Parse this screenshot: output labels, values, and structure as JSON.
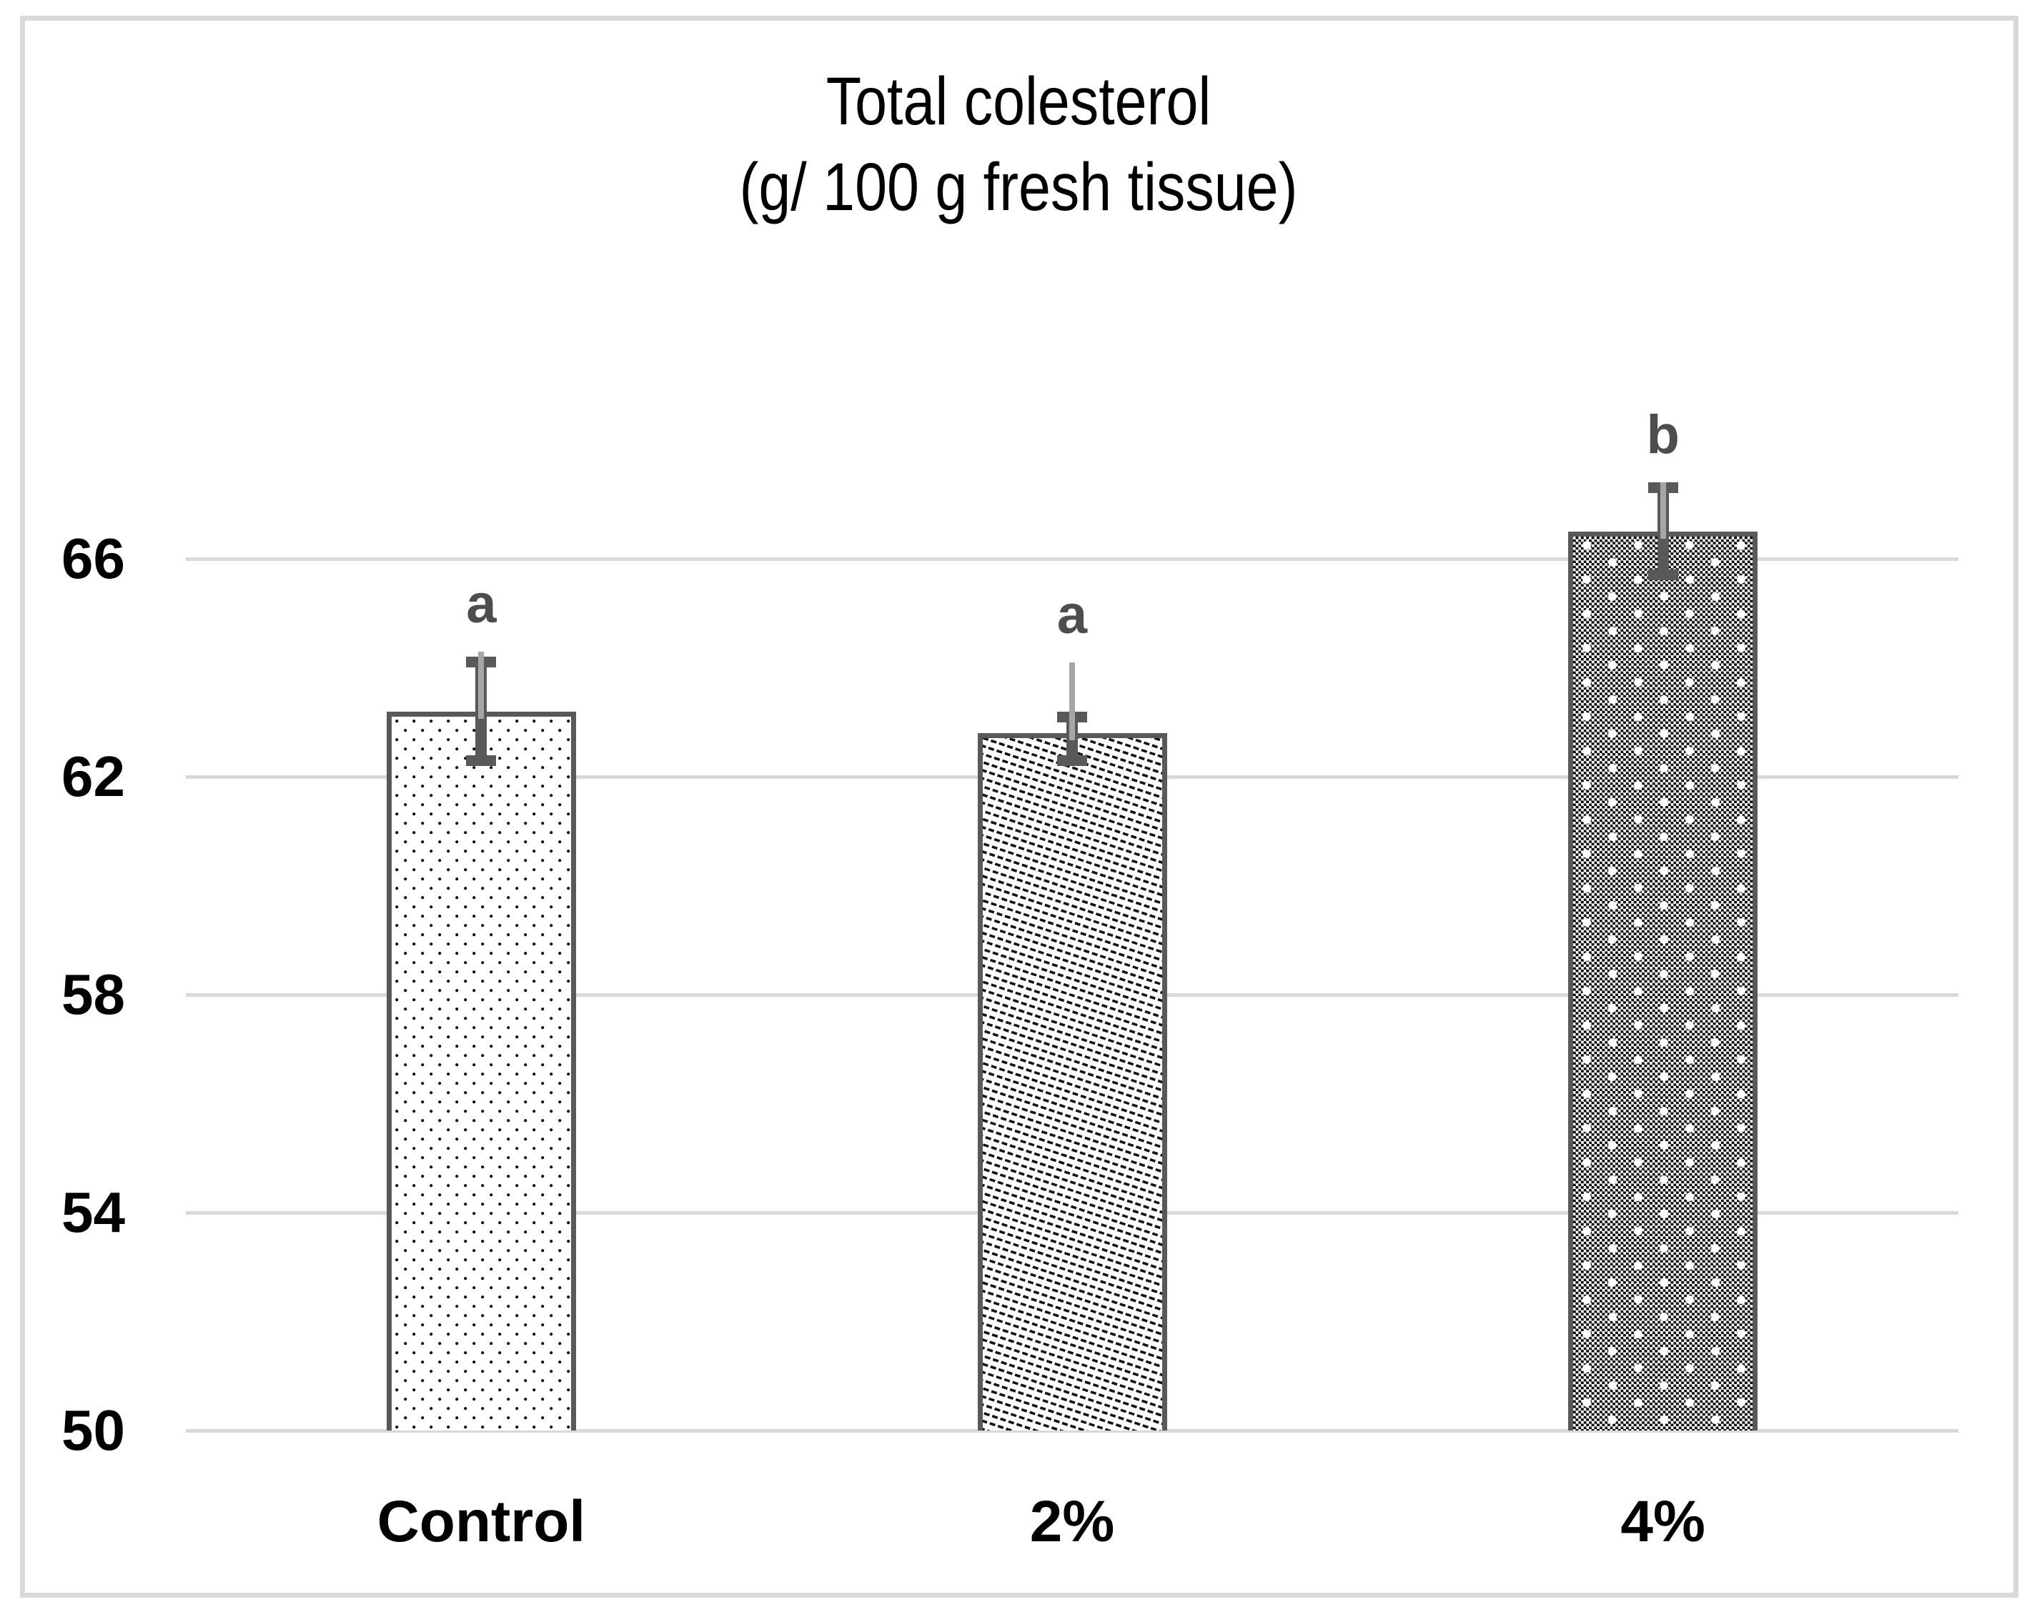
{
  "figure": {
    "title_line1": "Total colesterol",
    "title_line2": "(g/ 100 g fresh tissue)"
  },
  "chart_data": {
    "type": "bar",
    "title": "Total colesterol (g/ 100 g fresh tissue)",
    "xlabel": "",
    "ylabel": "",
    "categories": [
      "Control",
      "2%",
      "4%"
    ],
    "values": [
      63.2,
      62.8,
      66.5
    ],
    "significance_letters": [
      "a",
      "a",
      "b"
    ],
    "error_bar_top": [
      64.1,
      63.1,
      67.3
    ],
    "error_bar_bottom": [
      62.3,
      62.3,
      65.7
    ],
    "aux_line_top": [
      64.3,
      64.1,
      67.4
    ],
    "bar_patterns": [
      "dotted",
      "diagonal-dashed",
      "checkered"
    ],
    "yticks": [
      50,
      54,
      58,
      62,
      66
    ],
    "ylim_min": 50,
    "grid": true,
    "legend": false,
    "colors": {
      "bar_border": "#595959",
      "error_dark": "#595959",
      "error_light": "#a6a6a6",
      "gridline": "#d9d9d9",
      "frame_border": "#d9d9d9",
      "tick_label": "#000000",
      "category_label": "#000000",
      "letter": "#4d4d4d",
      "title": "#000000",
      "pattern_ink": "#000000",
      "background": "#ffffff"
    }
  }
}
